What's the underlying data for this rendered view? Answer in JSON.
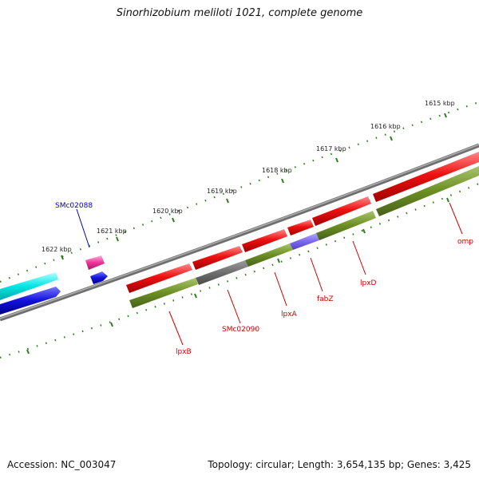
{
  "title": "Sinorhizobium meliloti 1021, complete genome",
  "footer": {
    "accession": "Accession: NC_003047",
    "stats": "Topology: circular; Length: 3,654,135 bp; Genes: 3,425"
  },
  "kbp_labels": [
    "1615 kbp",
    "1616 kbp",
    "1617 kbp",
    "1618 kbp",
    "1619 kbp",
    "1620 kbp",
    "1621 kbp",
    "1622 kbp"
  ],
  "gene_labels": {
    "SMc02088": "SMc02088",
    "lpxB": "lpxB",
    "SMc02090": "SMc02090",
    "lpxA": "lpxA",
    "fabZ": "fabZ",
    "lpxD": "lpxD",
    "omp": "omp"
  },
  "colors": {
    "backbone": "#8a8a8a",
    "cds_red": "#ee1111",
    "cds_green": "#6b8e23",
    "gray_block": "#6e6e6e",
    "purple_block": "#7b68ee",
    "cyan": "#00e5e5",
    "blue": "#1111dd",
    "magenta": "#ee3399",
    "tick": "#2e7d1e",
    "blue_label": "#0000aa",
    "red_label": "#cc0000"
  }
}
